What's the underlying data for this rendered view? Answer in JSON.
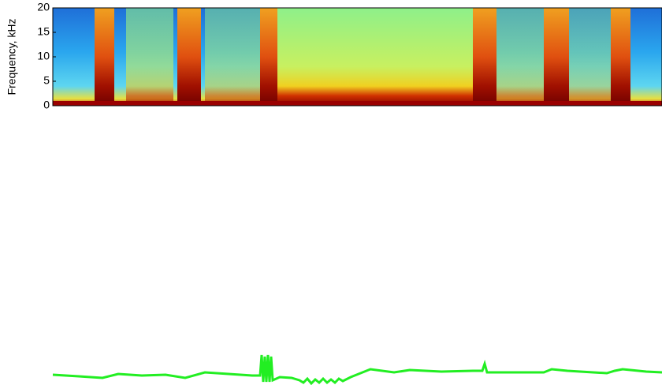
{
  "chart_data": {
    "type": "spectrogram",
    "ylabel": "Frequency, kHz",
    "ylim": [
      0,
      20
    ],
    "yticks": [
      0,
      5,
      10,
      15,
      20
    ]
  }
}
